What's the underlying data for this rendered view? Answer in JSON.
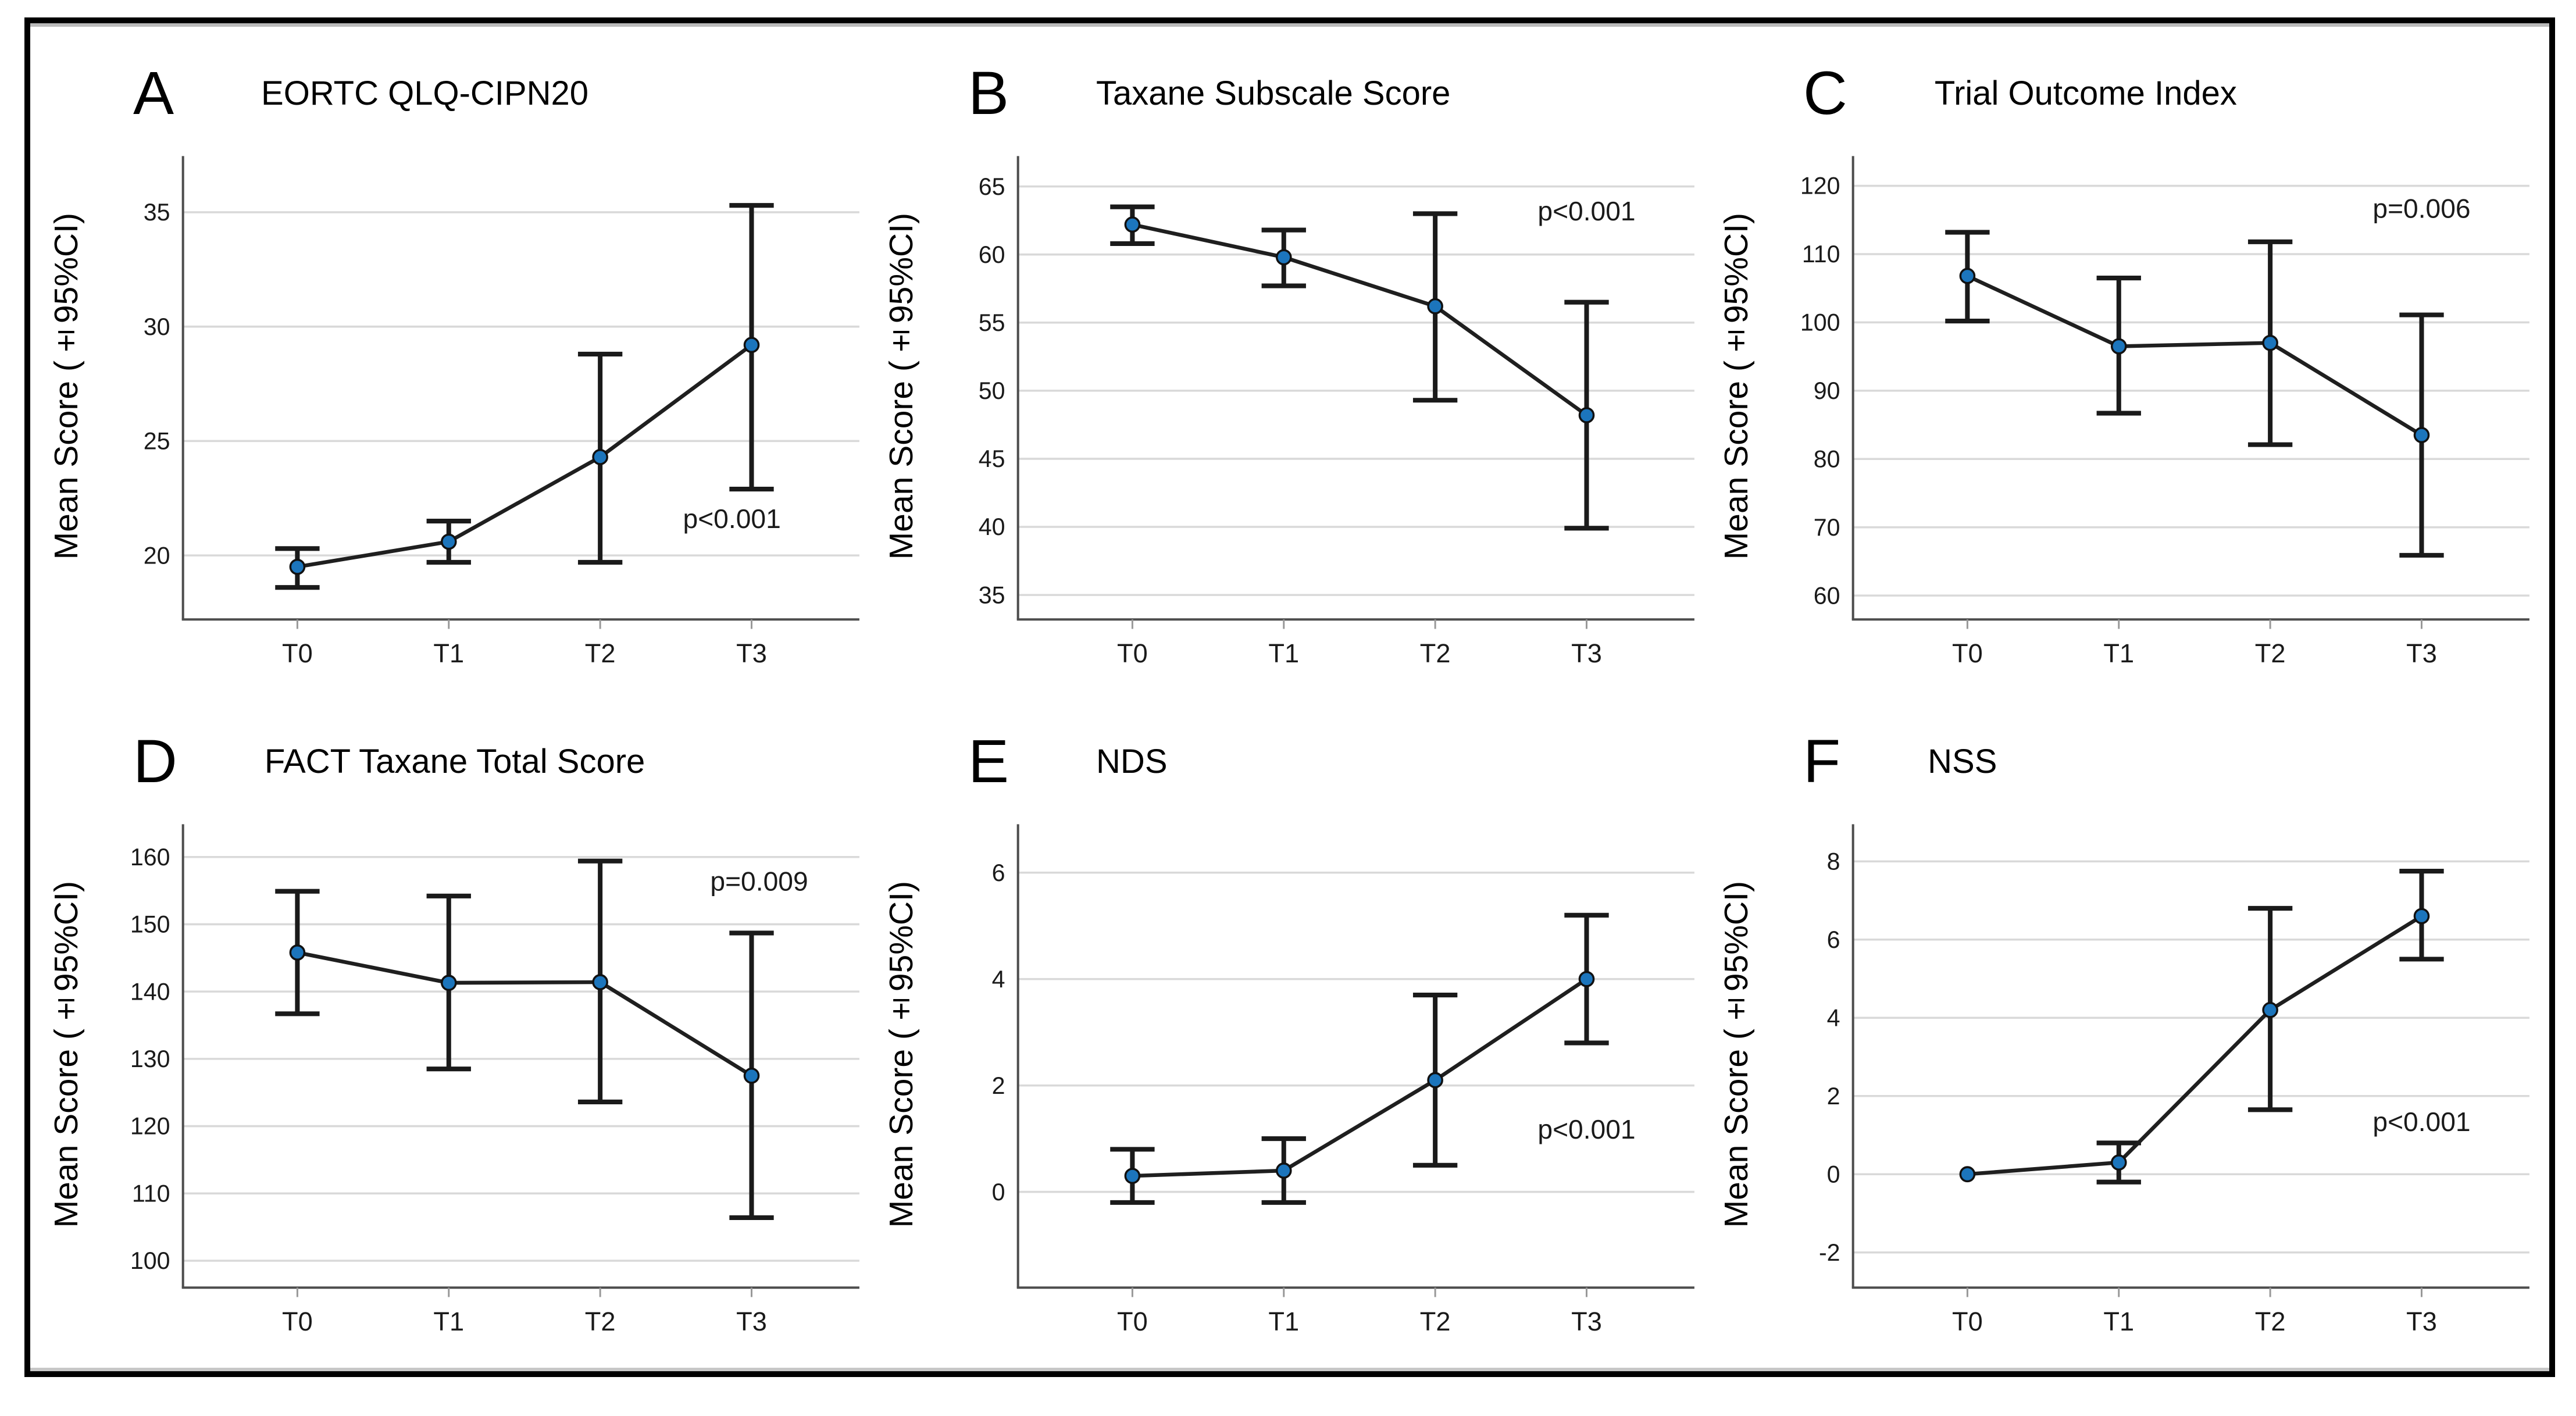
{
  "figure": {
    "description_visible_text_only": true,
    "x_axis_categories": [
      "T0",
      "T1",
      "T2",
      "T3"
    ],
    "shared_ylabel": "Mean Score (±95%CI)"
  },
  "style": {
    "marker_fill": "#1c75bc",
    "series_line": "#1f1f1f",
    "error_bar": "#1a1a1a",
    "grid": "#d9d9d9",
    "axis": "#4d4d4d",
    "text": "#1a1a1a",
    "border": "#000000"
  },
  "chart_data": [
    {
      "type": "line",
      "panel_label": "A",
      "title": "EORTC QLQ-CIPN20",
      "ylabel": "Mean Score (±95%CI)",
      "xlabel": "",
      "categories": [
        "T0",
        "T1",
        "T2",
        "T3"
      ],
      "series": [
        {
          "name": "Mean Score",
          "values": [
            19.5,
            20.6,
            24.3,
            29.2
          ]
        }
      ],
      "ci_low": [
        18.6,
        19.7,
        19.7,
        22.9
      ],
      "ci_high": [
        20.3,
        21.5,
        28.8,
        35.3
      ],
      "yticks": [
        20,
        25,
        30,
        35
      ],
      "ylim": [
        17.2,
        37.2
      ],
      "grid": "horizontal",
      "p_label": "p<0.001",
      "p_pos": {
        "x_index": 2.87,
        "y": 21.2
      }
    },
    {
      "type": "line",
      "panel_label": "B",
      "title": "Taxane Subscale Score",
      "ylabel": "Mean Score (±95%CI)",
      "xlabel": "",
      "categories": [
        "T0",
        "T1",
        "T2",
        "T3"
      ],
      "series": [
        {
          "name": "Mean Score",
          "values": [
            62.2,
            59.8,
            56.2,
            48.2
          ]
        }
      ],
      "ci_low": [
        60.8,
        57.7,
        49.3,
        39.9
      ],
      "ci_high": [
        63.5,
        61.8,
        63.0,
        56.5
      ],
      "yticks": [
        35,
        40,
        45,
        50,
        55,
        60,
        65
      ],
      "ylim": [
        33.2,
        66.8
      ],
      "grid": "horizontal",
      "p_label": "p<0.001",
      "p_pos": {
        "x_index": 3.0,
        "y": 62.5
      }
    },
    {
      "type": "line",
      "panel_label": "C",
      "title": "Trial Outcome Index",
      "ylabel": "Mean Score (±95%CI)",
      "xlabel": "",
      "categories": [
        "T0",
        "T1",
        "T2",
        "T3"
      ],
      "series": [
        {
          "name": "Mean Score",
          "values": [
            106.8,
            96.5,
            97.0,
            83.5
          ]
        }
      ],
      "ci_low": [
        100.2,
        86.7,
        82.1,
        65.9
      ],
      "ci_high": [
        113.2,
        106.5,
        111.8,
        101.1
      ],
      "yticks": [
        60,
        70,
        80,
        90,
        100,
        110,
        120
      ],
      "ylim": [
        56.5,
        123.5
      ],
      "grid": "horizontal",
      "p_label": "p=0.006",
      "p_pos": {
        "x_index": 3.0,
        "y": 115.3
      }
    },
    {
      "type": "line",
      "panel_label": "D",
      "title": "FACT Taxane Total Score",
      "ylabel": "Mean Score (±95%CI)",
      "xlabel": "",
      "categories": [
        "T0",
        "T1",
        "T2",
        "T3"
      ],
      "series": [
        {
          "name": "Mean Score",
          "values": [
            145.8,
            141.3,
            141.4,
            127.5
          ]
        }
      ],
      "ci_low": [
        136.7,
        128.5,
        123.6,
        106.4
      ],
      "ci_high": [
        154.9,
        154.2,
        159.4,
        148.7
      ],
      "yticks": [
        100,
        110,
        120,
        130,
        140,
        150,
        160
      ],
      "ylim": [
        96.0,
        164.0
      ],
      "grid": "horizontal",
      "p_label": "p=0.009",
      "p_pos": {
        "x_index": 3.05,
        "y": 155.0
      }
    },
    {
      "type": "line",
      "panel_label": "E",
      "title": "NDS",
      "ylabel": "Mean Score (±95%CI)",
      "xlabel": "",
      "categories": [
        "T0",
        "T1",
        "T2",
        "T3"
      ],
      "series": [
        {
          "name": "Mean Score",
          "values": [
            0.3,
            0.4,
            2.1,
            4.0
          ]
        }
      ],
      "ci_low": [
        -0.2,
        -0.2,
        0.5,
        2.8
      ],
      "ci_high": [
        0.8,
        1.0,
        3.7,
        5.2
      ],
      "yticks": [
        0,
        2,
        4,
        6
      ],
      "ylim": [
        -1.8,
        6.8
      ],
      "grid": "horizontal",
      "p_label": "p<0.001",
      "p_pos": {
        "x_index": 3.0,
        "y": 1.0
      }
    },
    {
      "type": "line",
      "panel_label": "F",
      "title": "NSS",
      "ylabel": "Mean Score (±95%CI)",
      "xlabel": "",
      "categories": [
        "T0",
        "T1",
        "T2",
        "T3"
      ],
      "series": [
        {
          "name": "Mean Score",
          "values": [
            0.0,
            0.3,
            4.2,
            6.6
          ]
        }
      ],
      "ci_low": [
        0.0,
        -0.2,
        1.65,
        5.5
      ],
      "ci_high": [
        0.0,
        0.8,
        6.8,
        7.75
      ],
      "yticks": [
        -2,
        0,
        2,
        4,
        6,
        8
      ],
      "ylim": [
        -2.9,
        8.8
      ],
      "grid": "horizontal",
      "p_label": "p<0.001",
      "p_pos": {
        "x_index": 3.0,
        "y": 1.1
      }
    }
  ]
}
